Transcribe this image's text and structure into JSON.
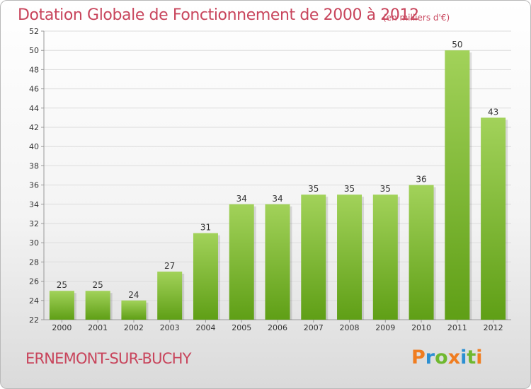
{
  "header": {
    "title": "Dotation Globale de Fonctionnement de 2000 à 2012",
    "unit": "(en milliers d'€)"
  },
  "footer": {
    "commune": "ERNEMONT-SUR-BUCHY",
    "brand": "Proxiti"
  },
  "colors": {
    "title": "#c8455c",
    "bar_light": "#a2d25a",
    "bar_dark": "#5f9f16",
    "logo_letters": [
      "#f07d20",
      "#2c8fd2",
      "#6fb82f",
      "#f07d20",
      "#2c8fd2",
      "#6fb82f",
      "#f07d20"
    ]
  },
  "chart_data": {
    "type": "bar",
    "title": "Dotation Globale de Fonctionnement de 2000 à 2012",
    "subtitle": "(en milliers d'€)",
    "categories": [
      "2000",
      "2001",
      "2002",
      "2003",
      "2004",
      "2005",
      "2006",
      "2007",
      "2008",
      "2009",
      "2010",
      "2011",
      "2012"
    ],
    "values": [
      25,
      25,
      24,
      27,
      31,
      34,
      34,
      35,
      35,
      35,
      36,
      50,
      43
    ],
    "ylim": [
      22,
      52
    ],
    "yticks": [
      22,
      24,
      26,
      28,
      30,
      32,
      34,
      36,
      38,
      40,
      42,
      44,
      46,
      48,
      50,
      52
    ],
    "grid": "horizontal",
    "data_labels": true
  }
}
